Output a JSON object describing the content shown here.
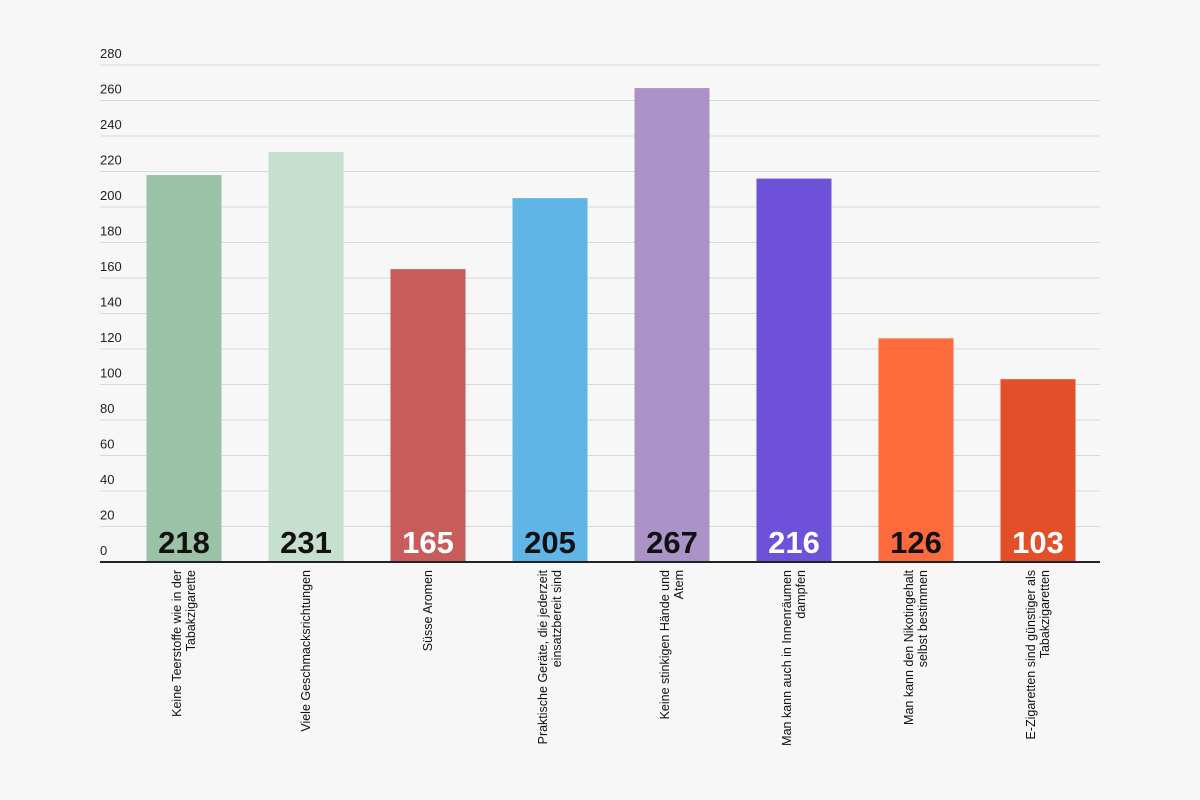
{
  "chart_data": {
    "type": "bar",
    "title": "",
    "xlabel": "",
    "ylabel": "",
    "ylim": [
      0,
      280
    ],
    "yticks": [
      0,
      20,
      40,
      60,
      80,
      100,
      120,
      140,
      160,
      180,
      200,
      220,
      240,
      260,
      280
    ],
    "grid": true,
    "categories": [
      [
        "Keine Teerstoffe wie in der",
        "Tabakzigarette"
      ],
      [
        "Viele Geschmacksrichtungen"
      ],
      [
        "Süsse Aromen"
      ],
      [
        "Praktische Geräte, die jederzeit",
        "einsatzbereit sind"
      ],
      [
        "Keine stinkigen Hände und",
        "Atem"
      ],
      [
        "Man kann auch in Innenräumen",
        "dampfen"
      ],
      [
        "Man kann den Nikotingehalt",
        "selbst bestimmen"
      ],
      [
        "E-Zigaretten sind günstiger als",
        "Tabakzigaretten"
      ]
    ],
    "values": [
      218,
      231,
      165,
      205,
      267,
      216,
      126,
      103
    ],
    "colors": [
      "#9bc2a7",
      "#c5e0cf",
      "#c85c5a",
      "#5fb5e5",
      "#ab93c8",
      "#6d52d9",
      "#fd6b3c",
      "#e34f28"
    ],
    "label_colors": [
      "#111111",
      "#111111",
      "#ffffff",
      "#111111",
      "#111111",
      "#ffffff",
      "#111111",
      "#ffffff"
    ]
  }
}
